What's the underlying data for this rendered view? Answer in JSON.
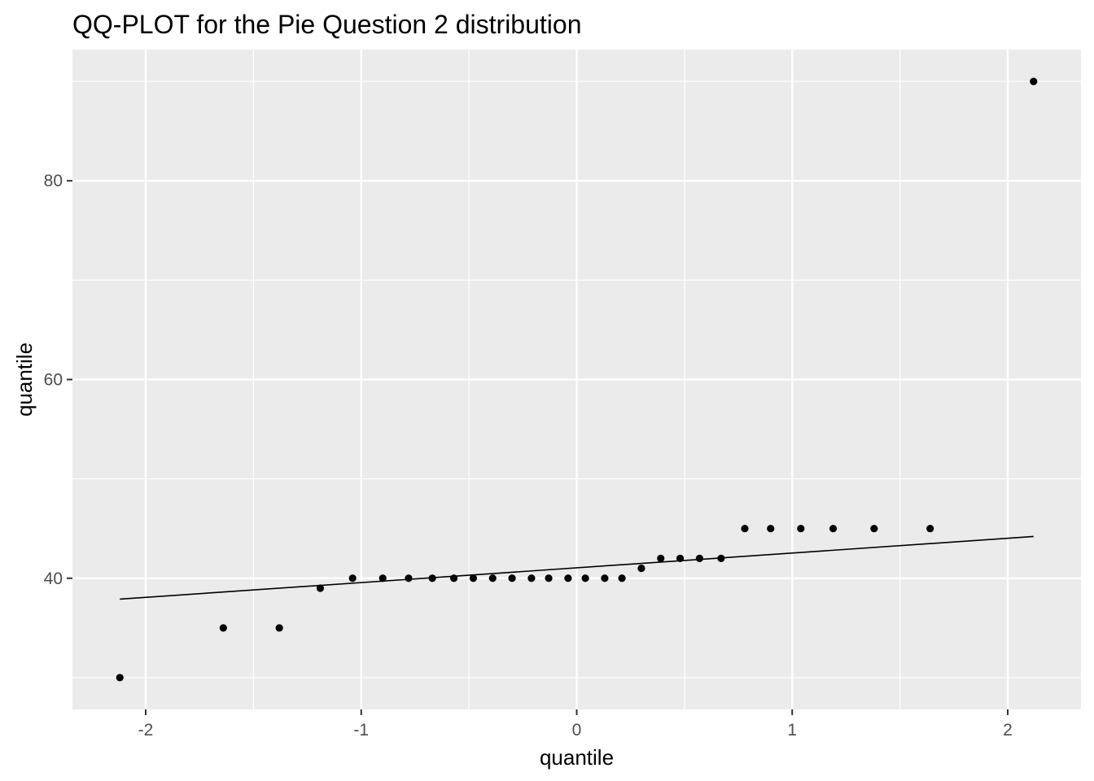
{
  "chart_data": {
    "type": "scatter",
    "title": "QQ-PLOT for the Pie Question 2 distribution",
    "xlabel": "quantile",
    "ylabel": "quantile",
    "xlim": [
      -2.34,
      2.34
    ],
    "ylim": [
      26.8,
      93.2
    ],
    "x_ticks": [
      -2,
      -1,
      0,
      1,
      2
    ],
    "x_tick_labels": [
      "-2",
      "-1",
      "0",
      "1",
      "2"
    ],
    "x_minor_ticks": [
      -1.5,
      -0.5,
      0.5,
      1.5
    ],
    "y_ticks": [
      40,
      60,
      80
    ],
    "y_tick_labels": [
      "40",
      "60",
      "80"
    ],
    "y_minor_ticks": [
      30,
      50,
      70,
      90
    ],
    "grid": true,
    "legend": "none",
    "colors": {
      "panel": "#ebebeb",
      "grid": "#ffffff",
      "points": "#000000",
      "line": "#000000"
    },
    "points": {
      "x": [
        -2.12,
        -1.64,
        -1.38,
        -1.19,
        -1.04,
        -0.9,
        -0.78,
        -0.67,
        -0.57,
        -0.48,
        -0.39,
        -0.3,
        -0.21,
        -0.13,
        -0.04,
        0.04,
        0.13,
        0.21,
        0.3,
        0.39,
        0.48,
        0.57,
        0.67,
        0.78,
        0.9,
        1.04,
        1.19,
        1.38,
        1.64,
        2.12
      ],
      "y": [
        30,
        35,
        35,
        39,
        40,
        40,
        40,
        40,
        40,
        40,
        40,
        40,
        40,
        40,
        40,
        40,
        40,
        40,
        41,
        42,
        42,
        42,
        42,
        45,
        45,
        45,
        45,
        45,
        45,
        90
      ]
    },
    "reference_line": {
      "x": [
        -2.12,
        2.12
      ],
      "y": [
        37.9,
        44.2
      ]
    }
  }
}
